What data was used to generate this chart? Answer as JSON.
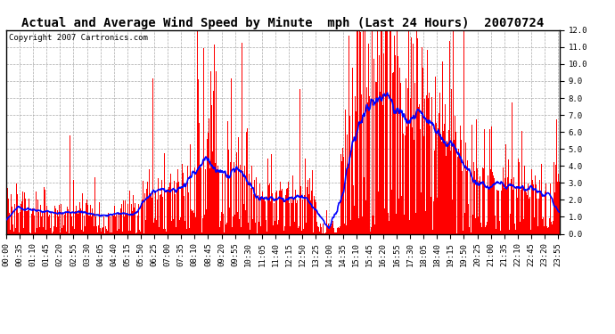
{
  "title": "Actual and Average Wind Speed by Minute  mph (Last 24 Hours)  20070724",
  "copyright": "Copyright 2007 Cartronics.com",
  "ylabel_right_min": 0.0,
  "ylabel_right_max": 12.0,
  "ylabel_right_step": 1.0,
  "bar_color": "#FF0000",
  "line_color": "#0000FF",
  "bg_color": "#FFFFFF",
  "grid_color": "#AAAAAA",
  "title_fontsize": 10,
  "tick_fontsize": 6.5,
  "copyright_fontsize": 6.5,
  "tick_times": [
    "00:00",
    "00:35",
    "01:10",
    "01:45",
    "02:20",
    "02:55",
    "03:30",
    "04:05",
    "04:40",
    "05:15",
    "05:50",
    "06:25",
    "07:00",
    "07:35",
    "08:10",
    "08:45",
    "09:20",
    "09:55",
    "10:30",
    "11:05",
    "11:40",
    "12:15",
    "12:50",
    "13:25",
    "14:00",
    "14:35",
    "15:10",
    "15:45",
    "16:20",
    "16:55",
    "17:30",
    "18:05",
    "18:40",
    "19:15",
    "19:50",
    "20:25",
    "21:00",
    "21:35",
    "22:10",
    "22:45",
    "23:20",
    "23:55"
  ]
}
